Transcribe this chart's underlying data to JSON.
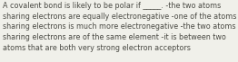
{
  "lines": [
    "A covalent bond is likely to be polar if _____. -the two atoms",
    "sharing electrons are equally electronegative -one of the atoms",
    "sharing electrons is much more electronegative -the two atoms",
    "sharing electrons are of the same element -it is between two",
    "atoms that are both very strong electron acceptors"
  ],
  "font_size": 5.8,
  "text_color": "#4a4a44",
  "background_color": "#f0f0ea"
}
